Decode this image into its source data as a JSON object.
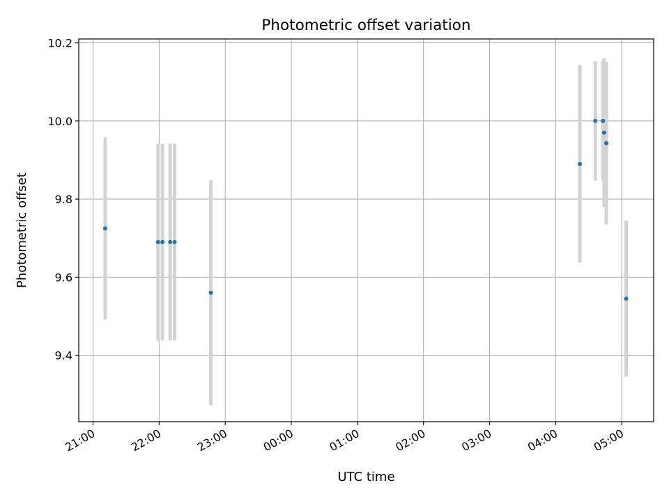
{
  "chart_data": {
    "type": "scatter",
    "title": "Photometric offset variation",
    "xlabel": "UTC time",
    "ylabel": "Photometric offset",
    "x_ticks": [
      "21:00",
      "22:00",
      "23:00",
      "00:00",
      "01:00",
      "02:00",
      "03:00",
      "04:00",
      "05:00"
    ],
    "y_ticks": [
      "9.4",
      "9.6",
      "9.8",
      "10.0",
      "10.2"
    ],
    "ylim": [
      9.23,
      10.21
    ],
    "xlim": [
      "20:47",
      "05:29"
    ],
    "grid": true,
    "marker_color": "#1f77b4",
    "errorbar_color": "#d3d3d3",
    "points": [
      {
        "time": "21:11",
        "value": 9.725,
        "err": 0.233
      },
      {
        "time": "21:59",
        "value": 9.69,
        "err": 0.252
      },
      {
        "time": "22:03",
        "value": 9.69,
        "err": 0.252
      },
      {
        "time": "22:10",
        "value": 9.69,
        "err": 0.252
      },
      {
        "time": "22:14",
        "value": 9.69,
        "err": 0.252
      },
      {
        "time": "22:47",
        "value": 9.56,
        "err": 0.288
      },
      {
        "time": "04:22",
        "value": 9.89,
        "err": 0.253
      },
      {
        "time": "04:36",
        "value": 10.0,
        "err": 0.153
      },
      {
        "time": "04:43",
        "value": 10.0,
        "err": 0.153
      },
      {
        "time": "04:44",
        "value": 9.97,
        "err": 0.19
      },
      {
        "time": "04:46",
        "value": 9.943,
        "err": 0.208
      },
      {
        "time": "05:04",
        "value": 9.545,
        "err": 0.2
      }
    ]
  }
}
